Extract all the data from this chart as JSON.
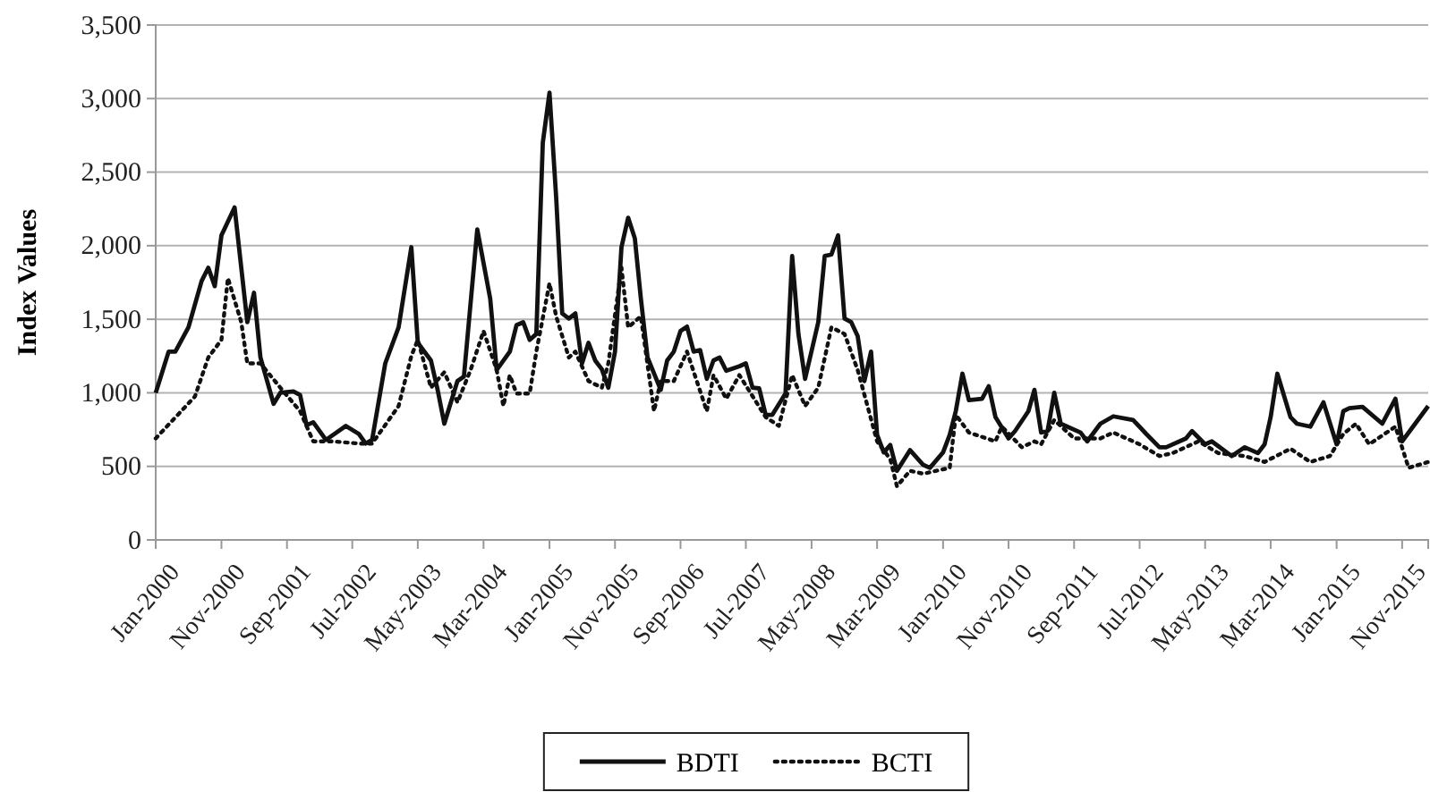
{
  "chart_data": {
    "type": "line",
    "ylabel": "Index Values",
    "ylim": [
      0,
      3500
    ],
    "yticks": [
      {
        "value": 0,
        "label": "0"
      },
      {
        "value": 500,
        "label": "500"
      },
      {
        "value": 1000,
        "label": "1,000"
      },
      {
        "value": 1500,
        "label": "1,500"
      },
      {
        "value": 2000,
        "label": "2,000"
      },
      {
        "value": 2500,
        "label": "2,500"
      },
      {
        "value": 3000,
        "label": "3,000"
      },
      {
        "value": 3500,
        "label": "3,500"
      }
    ],
    "xlim": [
      "2000-01",
      "2016-03"
    ],
    "xticks": [
      {
        "value": "2000-01",
        "label": "Jan-2000"
      },
      {
        "value": "2000-11",
        "label": "Nov-2000"
      },
      {
        "value": "2001-09",
        "label": "Sep-2001"
      },
      {
        "value": "2002-07",
        "label": "Jul-2002"
      },
      {
        "value": "2003-05",
        "label": "May-2003"
      },
      {
        "value": "2004-03",
        "label": "Mar-2004"
      },
      {
        "value": "2005-01",
        "label": "Jan-2005"
      },
      {
        "value": "2005-11",
        "label": "Nov-2005"
      },
      {
        "value": "2006-09",
        "label": "Sep-2006"
      },
      {
        "value": "2007-07",
        "label": "Jul-2007"
      },
      {
        "value": "2008-05",
        "label": "May-2008"
      },
      {
        "value": "2009-03",
        "label": "Mar-2009"
      },
      {
        "value": "2010-01",
        "label": "Jan-2010"
      },
      {
        "value": "2010-11",
        "label": "Nov-2010"
      },
      {
        "value": "2011-09",
        "label": "Sep-2011"
      },
      {
        "value": "2012-07",
        "label": "Jul-2012"
      },
      {
        "value": "2013-05",
        "label": "May-2013"
      },
      {
        "value": "2014-03",
        "label": "Mar-2014"
      },
      {
        "value": "2015-01",
        "label": "Jan-2015"
      },
      {
        "value": "2015-11",
        "label": "Nov-2015"
      }
    ],
    "grid": "y",
    "legend": "bottom",
    "marker": "none",
    "series": [
      {
        "name": "BDTI",
        "color": "#111111",
        "line_style": "solid",
        "x": [
          "2000-01",
          "2000-03",
          "2000-04",
          "2000-06",
          "2000-08",
          "2000-09",
          "2000-10",
          "2000-11",
          "2001-01",
          "2001-03",
          "2001-04",
          "2001-05",
          "2001-07",
          "2001-08",
          "2001-10",
          "2001-11",
          "2001-12",
          "2002-01",
          "2002-03",
          "2002-06",
          "2002-08",
          "2002-09",
          "2002-10",
          "2002-12",
          "2003-02",
          "2003-04",
          "2003-05",
          "2003-07",
          "2003-08",
          "2003-09",
          "2003-11",
          "2003-12",
          "2004-02",
          "2004-04",
          "2004-05",
          "2004-07",
          "2004-08",
          "2004-09",
          "2004-10",
          "2004-11",
          "2004-12",
          "2005-01",
          "2005-02",
          "2005-03",
          "2005-04",
          "2005-05",
          "2005-06",
          "2005-07",
          "2005-08",
          "2005-09",
          "2005-10",
          "2005-11",
          "2005-12",
          "2006-01",
          "2006-02",
          "2006-03",
          "2006-04",
          "2006-06",
          "2006-07",
          "2006-08",
          "2006-09",
          "2006-10",
          "2006-11",
          "2006-12",
          "2007-01",
          "2007-02",
          "2007-03",
          "2007-04",
          "2007-06",
          "2007-07",
          "2007-08",
          "2007-09",
          "2007-10",
          "2007-11",
          "2008-01",
          "2008-02",
          "2008-03",
          "2008-04",
          "2008-06",
          "2008-07",
          "2008-08",
          "2008-09",
          "2008-10",
          "2008-11",
          "2008-12",
          "2009-01",
          "2009-02",
          "2009-03",
          "2009-04",
          "2009-05",
          "2009-06",
          "2009-08",
          "2009-10",
          "2009-11",
          "2010-01",
          "2010-02",
          "2010-03",
          "2010-04",
          "2010-05",
          "2010-07",
          "2010-08",
          "2010-09",
          "2010-11",
          "2010-12",
          "2011-02",
          "2011-03",
          "2011-04",
          "2011-05",
          "2011-06",
          "2011-07",
          "2011-10",
          "2011-11",
          "2012-01",
          "2012-03",
          "2012-06",
          "2012-08",
          "2012-10",
          "2012-11",
          "2013-02",
          "2013-03",
          "2013-05",
          "2013-06",
          "2013-09",
          "2013-11",
          "2014-01",
          "2014-02",
          "2014-03",
          "2014-04",
          "2014-06",
          "2014-07",
          "2014-09",
          "2014-11",
          "2015-01",
          "2015-02",
          "2015-03",
          "2015-05",
          "2015-08",
          "2015-10",
          "2015-11",
          "2016-03"
        ],
        "values": [
          1000,
          1280,
          1280,
          1445,
          1760,
          1850,
          1725,
          2070,
          2260,
          1480,
          1680,
          1240,
          925,
          1000,
          1010,
          985,
          780,
          800,
          680,
          775,
          720,
          655,
          680,
          1200,
          1445,
          1990,
          1340,
          1220,
          1020,
          790,
          1080,
          1110,
          2110,
          1640,
          1155,
          1280,
          1460,
          1480,
          1360,
          1400,
          2700,
          3040,
          2330,
          1540,
          1505,
          1540,
          1200,
          1340,
          1220,
          1160,
          1035,
          1280,
          1990,
          2190,
          2050,
          1640,
          1240,
          1020,
          1220,
          1280,
          1420,
          1450,
          1280,
          1290,
          1095,
          1220,
          1240,
          1150,
          1180,
          1200,
          1035,
          1030,
          850,
          850,
          995,
          1930,
          1400,
          1095,
          1480,
          1930,
          1940,
          2070,
          1505,
          1480,
          1385,
          1080,
          1280,
          715,
          595,
          645,
          470,
          610,
          510,
          490,
          595,
          715,
          875,
          1130,
          950,
          960,
          1045,
          835,
          690,
          740,
          875,
          1020,
          730,
          740,
          1000,
          790,
          730,
          670,
          790,
          840,
          815,
          720,
          630,
          630,
          690,
          740,
          650,
          670,
          570,
          630,
          590,
          650,
          835,
          1130,
          835,
          790,
          770,
          935,
          650,
          875,
          895,
          905,
          790,
          960,
          670,
          910
        ]
      },
      {
        "name": "BCTI",
        "color": "#111111",
        "line_style": "dotted",
        "x": [
          "2000-01",
          "2000-07",
          "2000-09",
          "2000-11",
          "2000-12",
          "2001-02",
          "2001-03",
          "2001-05",
          "2001-08",
          "2001-11",
          "2002-01",
          "2002-04",
          "2002-08",
          "2002-10",
          "2003-02",
          "2003-04",
          "2003-05",
          "2003-07",
          "2003-09",
          "2003-11",
          "2004-01",
          "2004-03",
          "2004-05",
          "2004-06",
          "2004-07",
          "2004-08",
          "2004-10",
          "2004-11",
          "2005-01",
          "2005-02",
          "2005-04",
          "2005-05",
          "2005-07",
          "2005-09",
          "2005-10",
          "2005-12",
          "2006-01",
          "2006-03",
          "2006-05",
          "2006-06",
          "2006-08",
          "2006-10",
          "2007-01",
          "2007-02",
          "2007-04",
          "2007-06",
          "2007-10",
          "2007-12",
          "2008-02",
          "2008-04",
          "2008-06",
          "2008-08",
          "2008-10",
          "2008-12",
          "2009-03",
          "2009-05",
          "2009-06",
          "2009-08",
          "2009-10",
          "2009-12",
          "2010-02",
          "2010-03",
          "2010-05",
          "2010-09",
          "2010-10",
          "2011-01",
          "2011-03",
          "2011-04",
          "2011-06",
          "2011-09",
          "2012-01",
          "2012-03",
          "2012-07",
          "2012-10",
          "2012-12",
          "2013-04",
          "2013-07",
          "2013-11",
          "2014-02",
          "2014-06",
          "2014-09",
          "2014-12",
          "2015-02",
          "2015-04",
          "2015-06",
          "2015-10",
          "2015-12",
          "2016-03"
        ],
        "values": [
          690,
          975,
          1240,
          1360,
          1780,
          1480,
          1200,
          1200,
          1035,
          875,
          670,
          670,
          655,
          655,
          910,
          1250,
          1360,
          1035,
          1140,
          935,
          1155,
          1420,
          1155,
          910,
          1120,
          995,
          995,
          1280,
          1745,
          1520,
          1240,
          1280,
          1080,
          1035,
          1200,
          1850,
          1445,
          1520,
          875,
          1080,
          1080,
          1280,
          875,
          1120,
          960,
          1120,
          835,
          775,
          1120,
          910,
          1035,
          1445,
          1400,
          1155,
          670,
          550,
          365,
          470,
          450,
          470,
          490,
          850,
          730,
          670,
          770,
          630,
          670,
          650,
          815,
          690,
          690,
          730,
          650,
          570,
          590,
          670,
          590,
          570,
          530,
          620,
          530,
          570,
          720,
          790,
          650,
          770,
          490,
          530
        ]
      }
    ]
  }
}
